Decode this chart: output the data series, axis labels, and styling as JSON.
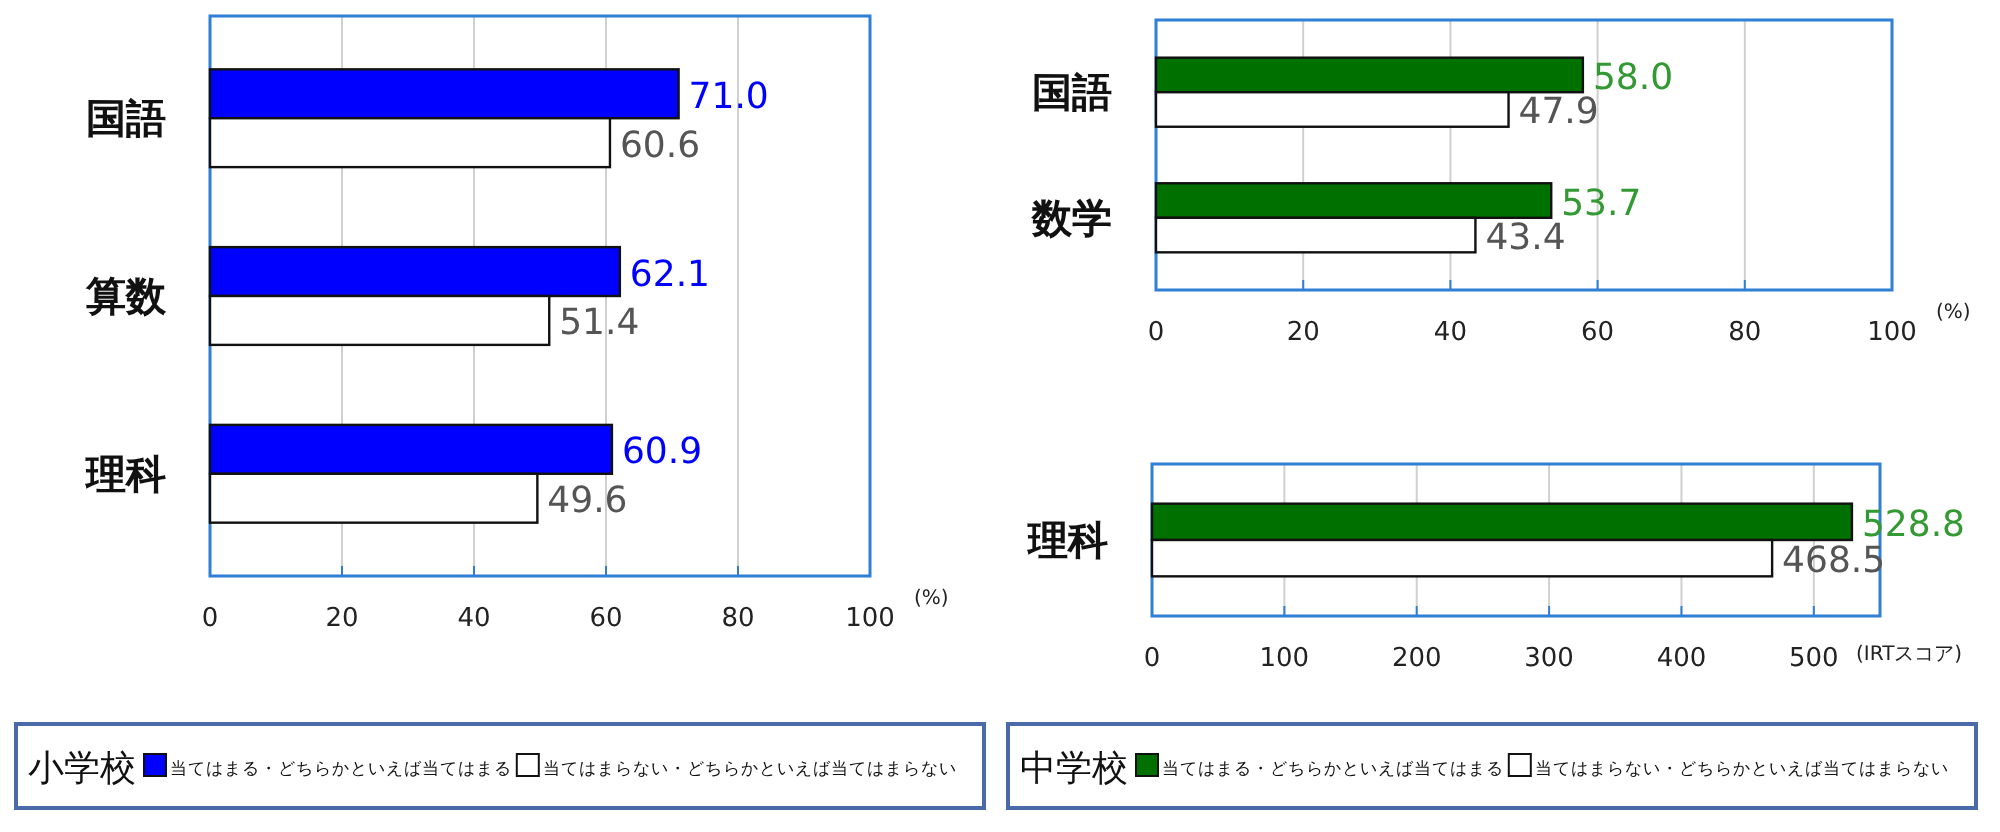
{
  "chart_data": [
    {
      "type": "bar",
      "orientation": "horizontal",
      "categories": [
        "国語",
        "算数",
        "理科"
      ],
      "xlabel": "(%)",
      "xlim": [
        0,
        100
      ],
      "xticks": [
        0,
        20,
        40,
        60,
        80,
        100
      ],
      "grid": "x",
      "legend": "bottom",
      "legend_title": "小学校",
      "series": [
        {
          "name": "当てはまる・どちらかといえば当てはまる",
          "color": "#0000ff",
          "values": [
            71.0,
            62.1,
            60.9
          ],
          "value_labels": [
            "71.0",
            "62.1",
            "60.9"
          ]
        },
        {
          "name": "当てはまらない・どちらかといえば当てはまらない",
          "color": "#ffffff",
          "values": [
            60.6,
            51.4,
            49.6
          ],
          "value_labels": [
            "60.6",
            "51.4",
            "49.6"
          ]
        }
      ]
    },
    {
      "type": "bar",
      "orientation": "horizontal",
      "categories": [
        "国語",
        "数学"
      ],
      "xlabel": "(%)",
      "xlim": [
        0,
        100
      ],
      "xticks": [
        0,
        20,
        40,
        60,
        80,
        100
      ],
      "grid": "x",
      "series": [
        {
          "color": "#007000",
          "values": [
            58.0,
            53.7
          ],
          "value_labels": [
            "58.0",
            "53.7"
          ]
        },
        {
          "color": "#ffffff",
          "values": [
            47.9,
            43.4
          ],
          "value_labels": [
            "47.9",
            "43.4"
          ]
        }
      ]
    },
    {
      "type": "bar",
      "orientation": "horizontal",
      "categories": [
        "理科"
      ],
      "xlabel": "(IRTスコア)",
      "xlim": [
        0,
        550
      ],
      "xticks": [
        0,
        100,
        200,
        300,
        400,
        500
      ],
      "grid": "x",
      "legend": "bottom",
      "legend_title": "中学校",
      "series": [
        {
          "name": "当てはまる・どちらかといえば当てはまる",
          "color": "#007000",
          "values": [
            528.8
          ],
          "value_labels": [
            "528.8"
          ]
        },
        {
          "name": "当てはまらない・どちらかといえば当てはまらない",
          "color": "#ffffff",
          "values": [
            468.5
          ],
          "value_labels": [
            "468.5"
          ]
        }
      ]
    }
  ]
}
